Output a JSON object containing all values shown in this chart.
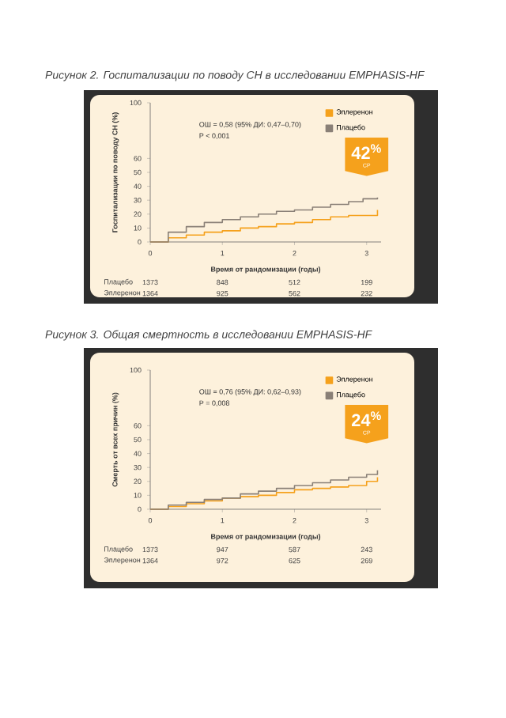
{
  "chart_data": [
    {
      "type": "step",
      "title": "Рисунок 2. Госпитализации по поводу СН в исследовании EMPHASIS-HF",
      "xlabel": "Время от рандомизации (годы)",
      "ylabel": "Госпитализации по поводу СН (%)",
      "xlim": [
        0,
        3.2
      ],
      "xticks": [
        0,
        1,
        2,
        3
      ],
      "ylim": [
        0,
        100
      ],
      "yticks": [
        0,
        10,
        20,
        30,
        40,
        50,
        60,
        100
      ],
      "legend": "top right",
      "series": [
        {
          "name": "Эплеренон",
          "color": "#f5a11c",
          "x": [
            0,
            0.25,
            0.5,
            0.75,
            1,
            1.25,
            1.5,
            1.75,
            2,
            2.25,
            2.5,
            2.75,
            2.95,
            3.15
          ],
          "values": [
            0,
            3,
            5,
            7,
            8,
            10,
            11,
            13,
            14,
            16,
            18,
            19,
            19,
            23
          ]
        },
        {
          "name": "Плацебо",
          "color": "#8a8077",
          "x": [
            0,
            0.25,
            0.5,
            0.75,
            1,
            1.25,
            1.5,
            1.75,
            2,
            2.25,
            2.5,
            2.75,
            2.95,
            3.15
          ],
          "values": [
            0,
            7,
            11,
            14,
            16,
            18,
            20,
            22,
            23,
            25,
            27,
            29,
            31,
            32
          ]
        }
      ],
      "annotations": [
        "ОШ = 0,58 (95% ДИ: 0,47–0,70)",
        "P < 0,001",
        "42$^{%}$",
        "СР",
        "Плацебо",
        "1373",
        "848",
        "512",
        "199",
        "Эплеренон",
        "1364",
        "925",
        "562",
        "232"
      ]
    },
    {
      "type": "step",
      "title": "Рисунок 3. Общая смертность в исследовании EMPHASIS-HF",
      "xlabel": "Время от рандомизации (годы)",
      "ylabel": "Смерть от всех причин (%)",
      "xlim": [
        0,
        3.2
      ],
      "xticks": [
        0,
        1,
        2,
        3
      ],
      "ylim": [
        0,
        100
      ],
      "yticks": [
        0,
        10,
        20,
        30,
        40,
        50,
        60,
        100
      ],
      "legend": "top right",
      "series": [
        {
          "name": "Эплеренон",
          "color": "#f5a11c",
          "x": [
            0,
            0.25,
            0.5,
            0.75,
            1,
            1.25,
            1.5,
            1.75,
            2,
            2.25,
            2.5,
            2.75,
            3,
            3.15
          ],
          "values": [
            0,
            2,
            4,
            6,
            8,
            9,
            10,
            12,
            14,
            15,
            16,
            17,
            20,
            23
          ]
        },
        {
          "name": "Плацебо",
          "color": "#8a8077",
          "x": [
            0,
            0.25,
            0.5,
            0.75,
            1,
            1.25,
            1.5,
            1.75,
            2,
            2.25,
            2.5,
            2.75,
            3,
            3.15
          ],
          "values": [
            0,
            3,
            5,
            7,
            8,
            11,
            13,
            15,
            17,
            19,
            21,
            23,
            25,
            28
          ]
        }
      ],
      "annotations": [
        "ОШ = 0,76 (95% ДИ: 0,62–0,93)",
        "P = 0,008",
        "24$^{%}$",
        "СР",
        "Плацебо",
        "1373",
        "947",
        "587",
        "243",
        "Эплеренон",
        "1364",
        "972",
        "625",
        "269"
      ]
    }
  ]
}
